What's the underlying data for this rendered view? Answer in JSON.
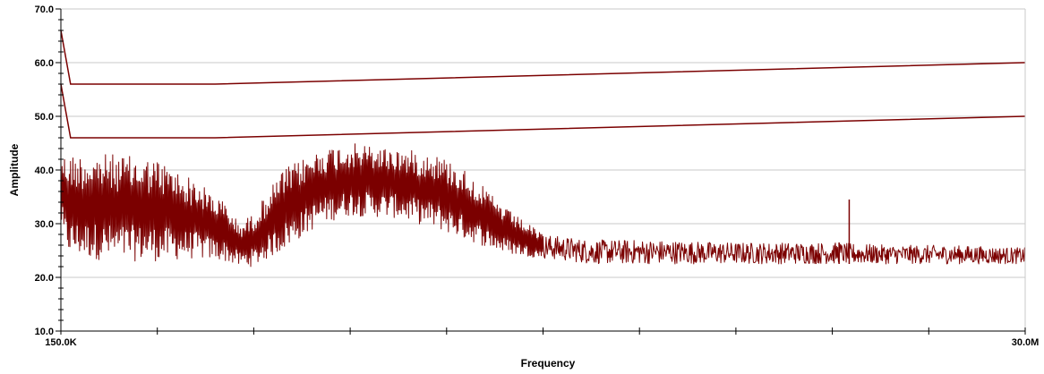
{
  "chart_data": {
    "type": "line",
    "xlabel": "Frequency",
    "ylabel": "Amplitude",
    "ylim": [
      10,
      70
    ],
    "xlim_labels": [
      "150.0K",
      "30.0M"
    ],
    "y_ticks": [
      "10.0",
      "20.0",
      "30.0",
      "40.0",
      "50.0",
      "60.0",
      "70.0"
    ],
    "x_tick_count": 10,
    "grid": "horizontal",
    "colors": {
      "trace": "#7b0000",
      "grid": "#c8c8c8",
      "axis": "#000000"
    },
    "series": [
      {
        "kind": "limit",
        "x": [
          0.0,
          0.01,
          0.16,
          1.0
        ],
        "y": [
          66,
          56,
          56,
          60
        ]
      },
      {
        "kind": "limit",
        "x": [
          0.0,
          0.01,
          0.16,
          1.0
        ],
        "y": [
          56,
          46,
          46,
          50
        ]
      },
      {
        "kind": "measurement",
        "envelope": {
          "x": [
            0.0,
            0.003,
            0.01,
            0.05,
            0.1,
            0.14,
            0.17,
            0.185,
            0.2,
            0.23,
            0.27,
            0.3,
            0.35,
            0.39,
            0.42,
            0.46,
            0.5,
            0.55,
            0.6,
            0.7,
            0.8,
            0.86,
            0.92,
            1.0
          ],
          "lower": [
            30,
            26,
            24,
            23,
            23,
            23.5,
            23,
            22,
            22,
            25,
            30,
            31.5,
            31,
            29,
            27,
            24.5,
            23.5,
            22.5,
            22.5,
            22.5,
            22.5,
            22.5,
            22.5,
            22.5
          ],
          "upper": [
            45,
            43,
            43,
            43,
            42,
            38,
            34,
            30,
            32,
            40,
            44,
            45,
            44,
            43,
            40,
            33,
            28,
            27,
            27,
            26.5,
            26.5,
            26,
            26,
            25.5
          ]
        },
        "spikes": [
          {
            "x": 0.8175,
            "y": 34.5
          },
          {
            "x": 0.807,
            "y": 26.5
          }
        ]
      }
    ]
  }
}
